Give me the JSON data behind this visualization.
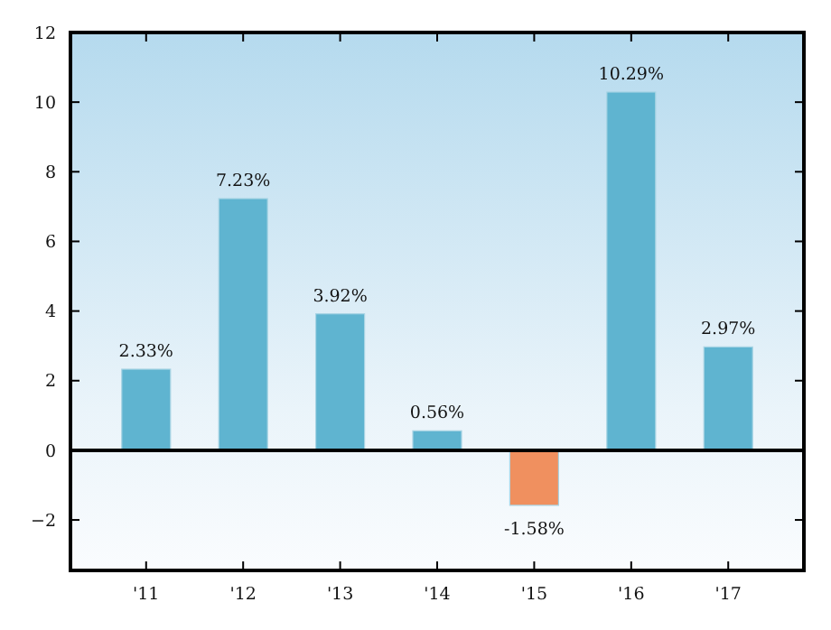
{
  "chart_data": {
    "type": "bar",
    "categories": [
      "'11",
      "'12",
      "'13",
      "'14",
      "'15",
      "'16",
      "'17"
    ],
    "values": [
      2.33,
      7.23,
      3.92,
      0.56,
      -1.58,
      10.29,
      2.97
    ],
    "value_labels": [
      "2.33%",
      "7.23%",
      "3.92%",
      "0.56%",
      "-1.58%",
      "10.29%",
      "2.97%"
    ],
    "colors": [
      "#5fb4d0",
      "#5fb4d0",
      "#5fb4d0",
      "#5fb4d0",
      "#f0905f",
      "#5fb4d0",
      "#5fb4d0"
    ],
    "ylim": [
      -3.45,
      12
    ],
    "yticks": [
      {
        "value": -2,
        "label": "−2"
      },
      0,
      2,
      4,
      6,
      8,
      10,
      12
    ],
    "ref_lines": [
      {
        "axis": "y",
        "value": 0
      }
    ],
    "grid": false
  }
}
